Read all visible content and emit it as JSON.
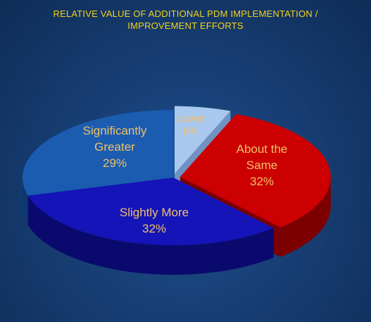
{
  "chart_data": {
    "type": "pie",
    "title_lines": [
      "RELATIVE VALUE OF ADDITIONAL PDM IMPLEMENTATION /",
      "IMPROVEMENT EFFORTS"
    ],
    "slices": [
      {
        "label": "Lower",
        "value": 6,
        "value_text": "6%",
        "color": "#a9c8ee",
        "side": "#6f93c2",
        "exploded": true
      },
      {
        "label": "About the Same",
        "value": 32,
        "value_text": "32%",
        "color": "#cc0000",
        "side": "#7d0000",
        "exploded": true
      },
      {
        "label": "Slightly More",
        "value": 32,
        "value_text": "32%",
        "color": "#1414b8",
        "side": "#0a0a6e",
        "exploded": false
      },
      {
        "label": "Significantly Greater",
        "value": 29,
        "value_text": "29%",
        "color": "#1b5cb0",
        "side": "#0f3872",
        "exploded": false
      }
    ],
    "display_labels": [
      [
        "Lower",
        "6%"
      ],
      [
        "About the",
        "Same",
        "32%"
      ],
      [
        "Slightly More",
        "32%"
      ],
      [
        "Significantly",
        "Greater",
        "29%"
      ]
    ],
    "style": "3d-exploded-pie"
  }
}
